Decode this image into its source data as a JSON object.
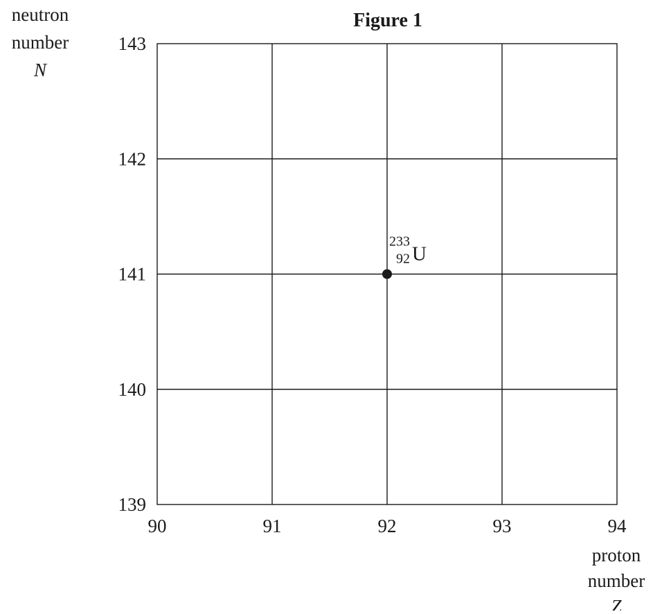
{
  "chart_data": {
    "type": "scatter",
    "title": "Figure 1",
    "ylabel_lines": [
      "neutron",
      "number",
      "N"
    ],
    "xlabel_lines": [
      "proton",
      "number",
      "Z"
    ],
    "xlim": [
      90,
      94
    ],
    "ylim": [
      139,
      143
    ],
    "x_ticks": [
      "90",
      "91",
      "92",
      "93",
      "94"
    ],
    "y_ticks": [
      "139",
      "140",
      "141",
      "142",
      "143"
    ],
    "grid": true,
    "points": [
      {
        "x": 92,
        "y": 141,
        "mass_number": "233",
        "atomic_number": "92",
        "symbol": "U"
      }
    ]
  }
}
